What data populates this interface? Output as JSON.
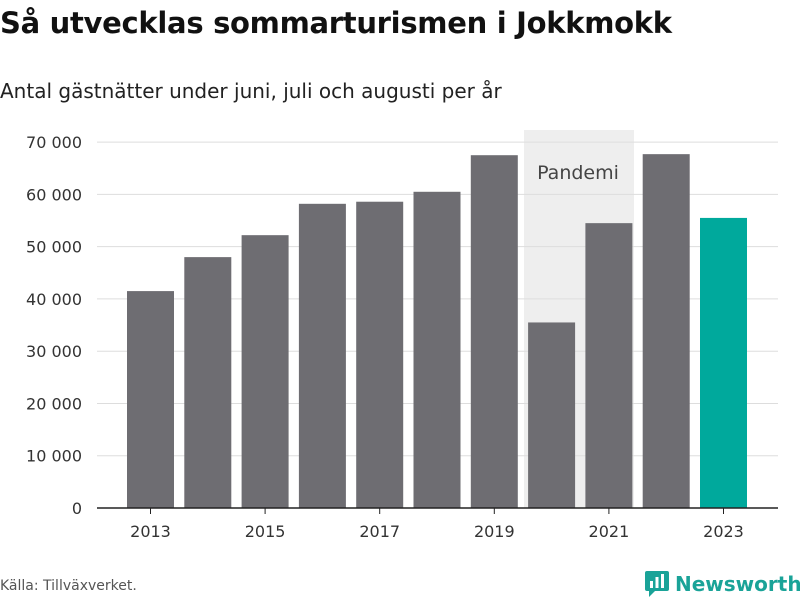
{
  "title": "Så utvecklas sommarturismen i Jokkmokk",
  "subtitle": "Antal gästnätter under juni, juli och augusti per år",
  "source": "Källa: Tillväxverket.",
  "brand": "Newsworthy",
  "colors": {
    "bar": "#6e6d72",
    "highlight": "#00a99c",
    "shade": "#eeeeee",
    "grid": "#dddddd",
    "brand": "#1aa398"
  },
  "chart_data": {
    "type": "bar",
    "title": "Så utvecklas sommarturismen i Jokkmokk",
    "subtitle": "Antal gästnätter under juni, juli och augusti per år",
    "categories": [
      "2013",
      "2014",
      "2015",
      "2016",
      "2017",
      "2018",
      "2019",
      "2020",
      "2021",
      "2022",
      "2023"
    ],
    "values": [
      41500,
      48000,
      52200,
      58200,
      58600,
      60500,
      67500,
      35500,
      54500,
      67700,
      55500
    ],
    "highlight_category": "2023",
    "x_tick_labels": [
      "2013",
      "2015",
      "2017",
      "2019",
      "2021",
      "2023"
    ],
    "y_ticks": [
      0,
      10000,
      20000,
      30000,
      40000,
      50000,
      60000,
      70000
    ],
    "y_tick_labels": [
      "0",
      "10 000",
      "20 000",
      "30 000",
      "40 000",
      "50 000",
      "60 000",
      "70 000"
    ],
    "ylim": [
      0,
      70000
    ],
    "grid": true,
    "annotation": {
      "label": "Pandemi",
      "category": "2020"
    },
    "xlabel": "",
    "ylabel": ""
  }
}
